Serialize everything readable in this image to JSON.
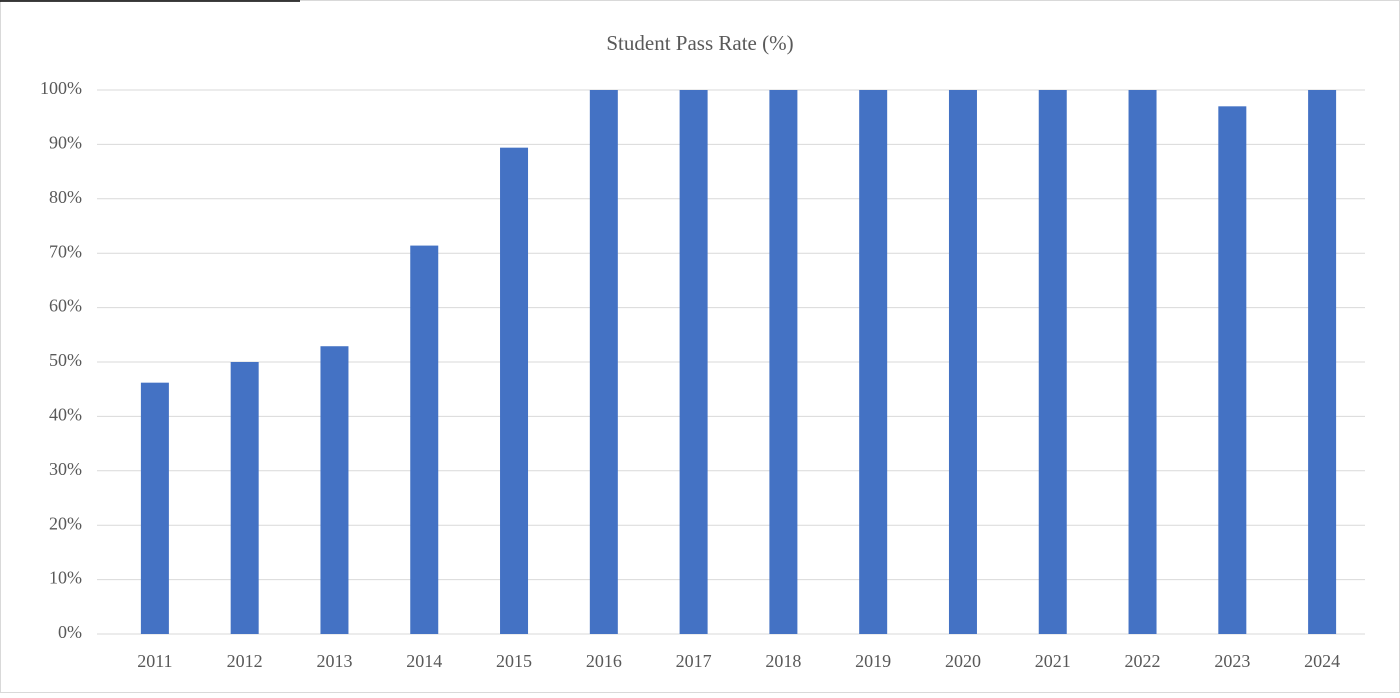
{
  "chart_data": {
    "type": "bar",
    "title": "Student Pass Rate (%)",
    "categories": [
      "2011",
      "2012",
      "2013",
      "2014",
      "2015",
      "2016",
      "2017",
      "2018",
      "2019",
      "2020",
      "2021",
      "2022",
      "2023",
      "2024"
    ],
    "values": [
      46.2,
      50,
      52.9,
      71.4,
      89.4,
      100,
      100,
      100,
      100,
      100,
      100,
      100,
      97,
      100
    ],
    "color": "#4472c4",
    "ylim": [
      0,
      100
    ],
    "yticks": [
      {
        "value": 0,
        "label": "0%"
      },
      {
        "value": 10,
        "label": "10%"
      },
      {
        "value": 20,
        "label": "20%"
      },
      {
        "value": 30,
        "label": "30%"
      },
      {
        "value": 40,
        "label": "40%"
      },
      {
        "value": 50,
        "label": "50%"
      },
      {
        "value": 60,
        "label": "60%"
      },
      {
        "value": 70,
        "label": "70%"
      },
      {
        "value": 80,
        "label": "80%"
      },
      {
        "value": 90,
        "label": "90%"
      },
      {
        "value": 100,
        "label": "100%"
      }
    ],
    "grid": true
  }
}
